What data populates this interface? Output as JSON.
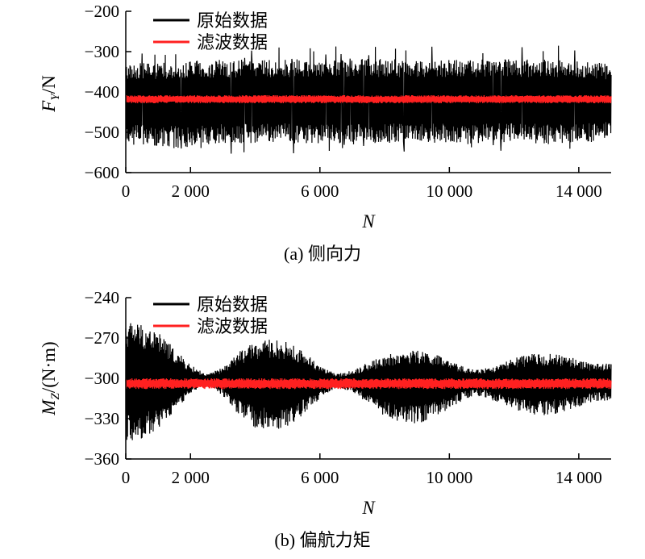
{
  "chart_data": [
    {
      "type": "line",
      "caption": "(a) 侧向力",
      "xlabel": "N",
      "ylabel_main": "F",
      "ylabel_sub": "Y",
      "ylabel_unit": "/N",
      "xlim": [
        0,
        15000
      ],
      "ylim": [
        -600,
        -200
      ],
      "xticks": [
        0,
        2000,
        6000,
        10000,
        14000
      ],
      "xtick_labels": [
        "0",
        "2 000",
        "6 000",
        "10 000",
        "14 000"
      ],
      "yticks": [
        -200,
        -300,
        -400,
        -500,
        -600
      ],
      "ytick_labels": [
        "−200",
        "−300",
        "−400",
        "−500",
        "−600"
      ],
      "legend_position": "top-left",
      "grid": false,
      "series": [
        {
          "name": "原始数据",
          "color": "#000000",
          "center": -418,
          "x": [
            0,
            1500,
            3000,
            4500,
            6000,
            7500,
            9000,
            10500,
            12000,
            13500,
            15000
          ],
          "envelope_upper": [
            -330,
            -325,
            -320,
            -320,
            -318,
            -318,
            -320,
            -320,
            -318,
            -320,
            -330
          ],
          "envelope_lower": [
            -530,
            -540,
            -530,
            -525,
            -530,
            -530,
            -525,
            -530,
            -525,
            -530,
            -520
          ],
          "peak_max": -285,
          "peak_min": -560
        },
        {
          "name": "滤波数据",
          "color": "#ff2020",
          "center": -418,
          "x": [
            0,
            15000
          ],
          "envelope_upper": [
            -408,
            -408
          ],
          "envelope_lower": [
            -428,
            -428
          ]
        }
      ]
    },
    {
      "type": "line",
      "caption": "(b) 偏航力矩",
      "xlabel": "N",
      "ylabel_main": "M",
      "ylabel_sub": "Z",
      "ylabel_unit": "/(N·m)",
      "xlim": [
        0,
        15000
      ],
      "ylim": [
        -360,
        -240
      ],
      "xticks": [
        0,
        2000,
        6000,
        10000,
        14000
      ],
      "xtick_labels": [
        "0",
        "2 000",
        "6 000",
        "10 000",
        "14 000"
      ],
      "yticks": [
        -240,
        -270,
        -300,
        -330,
        -360
      ],
      "ytick_labels": [
        "−240",
        "−270",
        "−300",
        "−330",
        "−360"
      ],
      "legend_position": "top-left",
      "grid": false,
      "series": [
        {
          "name": "原始数据",
          "color": "#000000",
          "center": -302,
          "x": [
            0,
            200,
            500,
            1000,
            1500,
            2000,
            2500,
            3000,
            3500,
            4000,
            4500,
            5000,
            5500,
            6000,
            6500,
            7000,
            7500,
            8000,
            8500,
            9000,
            9500,
            10000,
            10500,
            11000,
            11500,
            12000,
            12500,
            13000,
            13500,
            14000,
            14500,
            15000
          ],
          "envelope_upper": [
            -258,
            -257,
            -259,
            -265,
            -278,
            -290,
            -297,
            -292,
            -280,
            -273,
            -271,
            -273,
            -280,
            -290,
            -297,
            -294,
            -288,
            -283,
            -280,
            -279,
            -281,
            -287,
            -292,
            -293,
            -290,
            -285,
            -282,
            -281,
            -283,
            -286,
            -289,
            -288
          ],
          "envelope_lower": [
            -347,
            -347,
            -345,
            -338,
            -325,
            -311,
            -304,
            -313,
            -328,
            -337,
            -339,
            -336,
            -327,
            -315,
            -307,
            -310,
            -320,
            -328,
            -333,
            -334,
            -330,
            -323,
            -315,
            -313,
            -318,
            -323,
            -327,
            -328,
            -325,
            -321,
            -317,
            -318
          ]
        },
        {
          "name": "滤波数据",
          "color": "#ff2020",
          "center": -304,
          "x": [
            0,
            15000
          ],
          "envelope_upper": [
            -300,
            -300
          ],
          "envelope_lower": [
            -308,
            -308
          ]
        }
      ]
    }
  ]
}
